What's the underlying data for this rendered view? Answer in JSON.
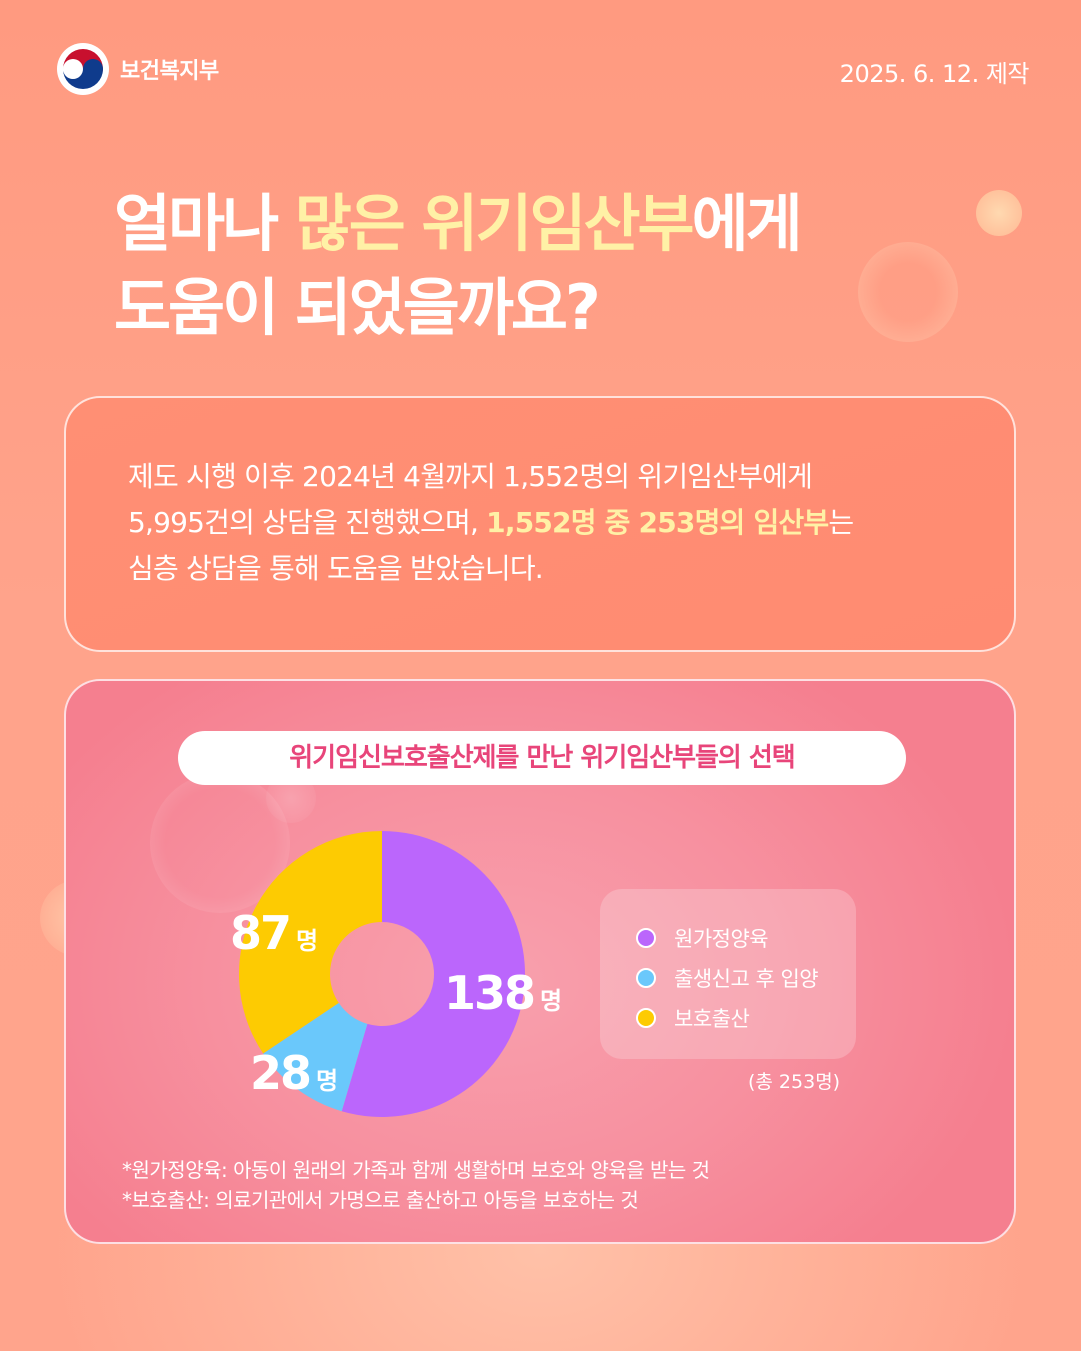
{
  "header": {
    "ministry_name": "보건복지부",
    "date": "2025. 6. 12. 제작"
  },
  "headline": {
    "line1_pre": "얼마나 ",
    "line1_highlight": "많은 위기임산부",
    "line1_post": "에게",
    "line2": "도움이 되었을까요?"
  },
  "summary": {
    "line1": "제도 시행 이후 2024년 4월까지 1,552명의 위기임산부에게",
    "line2_pre": "5,995건의 상담을 진행했으며, ",
    "line2_highlight": "1,552명 중 253명의 임산부",
    "line2_post": "는",
    "line3": "심층 상담을 통해 도움을 받았습니다."
  },
  "colors": {
    "highlight": "#fff1a6",
    "purple": "#bb66fc",
    "blue": "#6ac8fb",
    "yellow": "#fdcb02",
    "pill_text": "#e8457a"
  },
  "chart_data": {
    "type": "pie",
    "style": "donut",
    "title": "위기임신보호출산제를 만난 위기임산부들의 선택",
    "unit": "명",
    "categories": [
      "원가정양육",
      "출생신고 후 입양",
      "보호출산"
    ],
    "values": [
      138,
      28,
      87
    ],
    "colors": [
      "#bb66fc",
      "#6ac8fb",
      "#fdcb02"
    ],
    "total_label": "(총 253명)",
    "legend_position": "right"
  },
  "notes": [
    "*원가정양육: 아동이 원래의 가족과 함께 생활하며 보호와 양육을 받는 것",
    "*보호출산: 의료기관에서 가명으로 출산하고 아동을 보호하는 것"
  ]
}
